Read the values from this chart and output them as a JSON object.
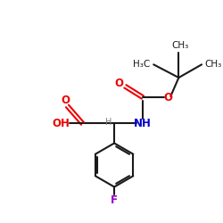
{
  "background_color": "#ffffff",
  "bond_color": "#1a1a1a",
  "oxygen_color": "#ee0000",
  "nitrogen_color": "#0000cc",
  "fluorine_color": "#9900cc",
  "hydrogen_color": "#808080",
  "fig_width": 2.5,
  "fig_height": 2.5,
  "dpi": 100,
  "lw": 1.5,
  "fs": 8.5,
  "fs_small": 7.5,
  "xlim": [
    0,
    10
  ],
  "ylim": [
    0,
    10
  ]
}
